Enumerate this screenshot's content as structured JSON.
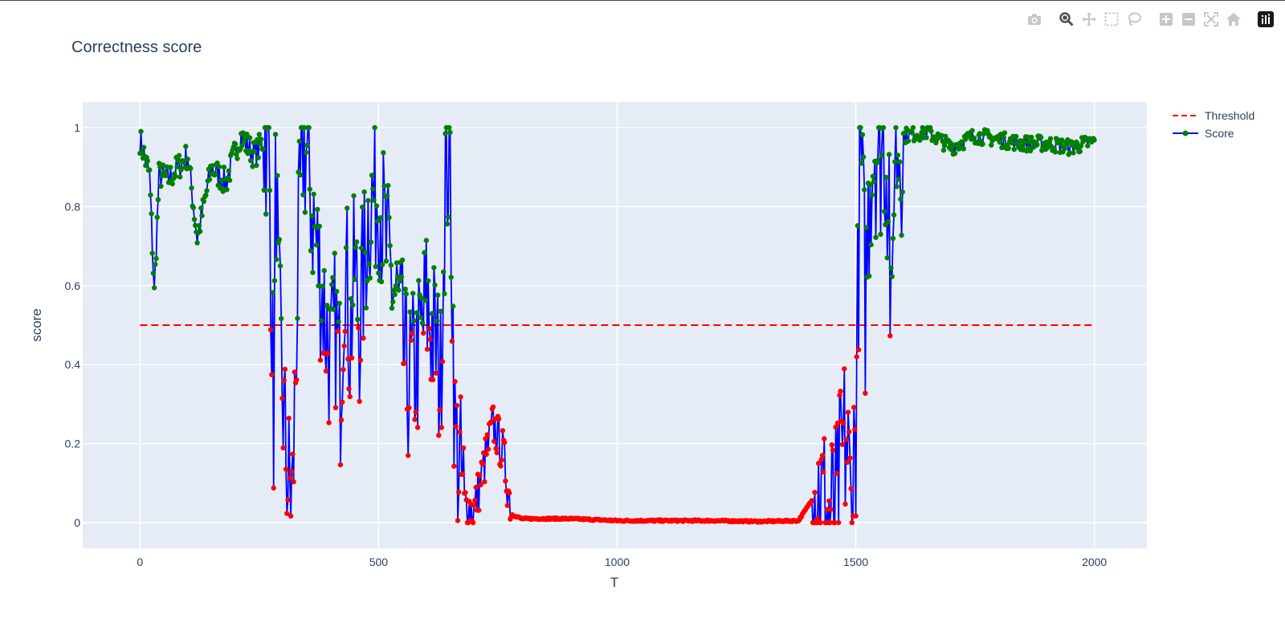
{
  "title": "Correctness score",
  "chart_data": {
    "type": "line",
    "title": "Correctness score",
    "xlabel": "T",
    "ylabel": "score",
    "xlim": [
      -120,
      2110
    ],
    "ylim": [
      -0.065,
      1.065
    ],
    "xticks": [
      0,
      500,
      1000,
      1500,
      2000
    ],
    "xtick_labels": [
      "0",
      "500",
      "1000",
      "1500",
      "2000"
    ],
    "yticks": [
      0,
      0.2,
      0.4,
      0.6,
      0.8,
      1
    ],
    "ytick_labels": [
      "0",
      "0.2",
      "0.4",
      "0.6",
      "0.8",
      "1"
    ],
    "grid": true,
    "legend_position": "top-right-outside",
    "threshold": 0.5,
    "series": [
      {
        "name": "Threshold",
        "style": "dashed",
        "color": "#ff0000",
        "x": [
          0,
          2000
        ],
        "values": [
          0.5,
          0.5
        ]
      },
      {
        "name": "Score",
        "style": "lines+markers",
        "color": "#0000ff",
        "marker_color_above": "#008000",
        "marker_color_below": "#ff0000",
        "keypoints_x": [
          0,
          20,
          30,
          40,
          60,
          100,
          120,
          150,
          180,
          210,
          240,
          270,
          280,
          285,
          290,
          300,
          310,
          320,
          330,
          340,
          350,
          360,
          370,
          380,
          400,
          410,
          420,
          430,
          440,
          450,
          460,
          480,
          500,
          520,
          540,
          560,
          580,
          600,
          620,
          630,
          640,
          650,
          660,
          680,
          700,
          740,
          760,
          780,
          800,
          900,
          1000,
          1100,
          1200,
          1300,
          1380,
          1420,
          1440,
          1460,
          1470,
          1480,
          1490,
          1500,
          1510,
          1520,
          1530,
          1540,
          1550,
          1560,
          1570,
          1575,
          1580,
          1600,
          1650,
          1700,
          1750,
          1800,
          1850,
          1900,
          1950,
          2000
        ],
        "keypoints_y": [
          0.97,
          0.88,
          0.58,
          0.88,
          0.87,
          0.93,
          0.72,
          0.9,
          0.86,
          0.98,
          0.93,
          0.99,
          0.25,
          0.95,
          0.55,
          0.3,
          0.1,
          0.07,
          0.6,
          0.97,
          0.93,
          0.8,
          0.7,
          0.6,
          0.4,
          0.5,
          0.35,
          0.7,
          0.45,
          0.65,
          0.5,
          0.8,
          0.85,
          0.65,
          0.55,
          0.35,
          0.4,
          0.55,
          0.45,
          0.35,
          0.9,
          0.9,
          0.22,
          0.05,
          0.03,
          0.25,
          0.18,
          0.02,
          0.01,
          0.01,
          0.005,
          0.005,
          0.005,
          0.003,
          0.005,
          0.08,
          0.01,
          0.005,
          0.15,
          0.22,
          0.03,
          0.25,
          0.97,
          0.55,
          0.9,
          0.97,
          0.95,
          0.97,
          0.85,
          0.3,
          0.95,
          0.98,
          0.99,
          0.95,
          0.98,
          0.97,
          0.96,
          0.96,
          0.95,
          0.965
        ],
        "keypoint_note": "approximate trace read from dense series"
      }
    ]
  },
  "legend": [
    {
      "label": "Threshold",
      "color": "#ff0000",
      "style": "dashed"
    },
    {
      "label": "Score",
      "color": "#0000ff",
      "marker_color": "#008000",
      "style": "line+marker"
    }
  ],
  "modebar": [
    {
      "name": "camera-icon",
      "title": "Download plot as a png"
    },
    {
      "name": "zoom-icon",
      "title": "Zoom"
    },
    {
      "name": "pan-icon",
      "title": "Pan"
    },
    {
      "name": "box-select-icon",
      "title": "Box Select"
    },
    {
      "name": "lasso-select-icon",
      "title": "Lasso Select"
    },
    {
      "name": "zoom-in-icon",
      "title": "Zoom in"
    },
    {
      "name": "zoom-out-icon",
      "title": "Zoom out"
    },
    {
      "name": "autoscale-icon",
      "title": "Autoscale"
    },
    {
      "name": "home-icon",
      "title": "Reset axes"
    },
    {
      "name": "plotly-logo-icon",
      "title": "Produced with Plotly"
    }
  ]
}
